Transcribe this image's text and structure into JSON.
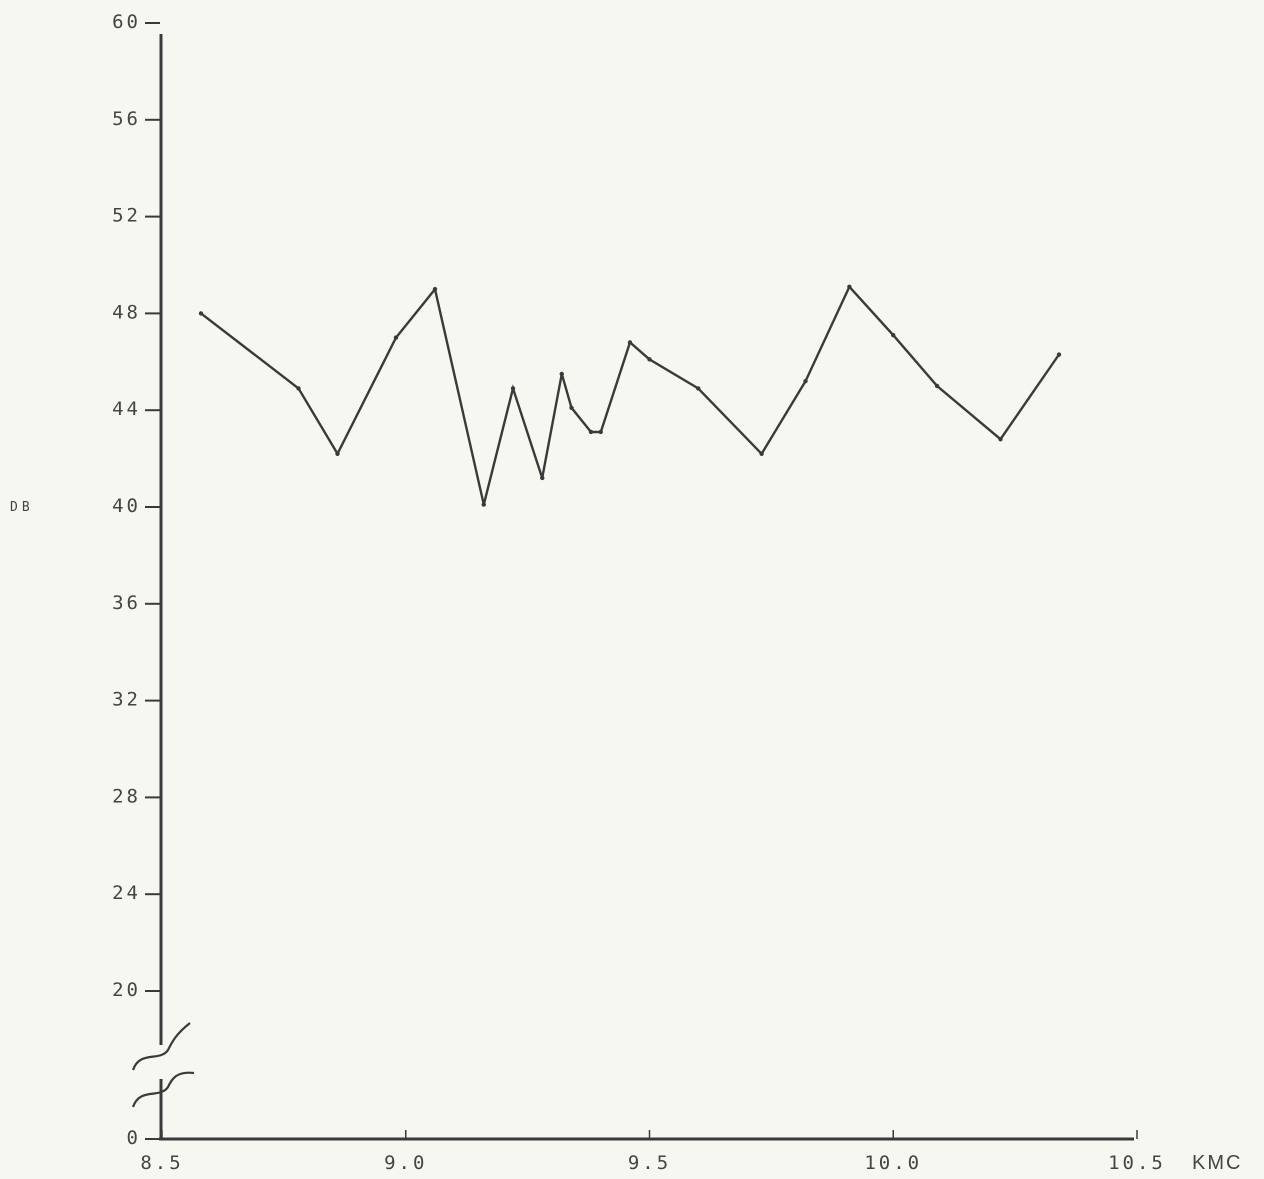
{
  "chart_data": {
    "type": "line",
    "ylabel": "DB",
    "xunit": "KMC",
    "xlim": [
      8.5,
      10.5
    ],
    "ylim": [
      0,
      60
    ],
    "y_axis_break": "between 0 and 20",
    "grid": false,
    "x_tick_values": [
      8.5,
      9.0,
      9.5,
      10.0,
      10.5
    ],
    "x_tick_labels": [
      "8.5",
      "9.0",
      "9.5",
      "10.0",
      "10.5"
    ],
    "y_tick_values": [
      0,
      20,
      24,
      28,
      32,
      36,
      40,
      44,
      48,
      52,
      56,
      60
    ],
    "y_tick_labels": [
      "0",
      "20",
      "24",
      "28",
      "32",
      "36",
      "40",
      "44",
      "48",
      "52",
      "56",
      "60"
    ],
    "series": [
      {
        "x": [
          8.58,
          8.78,
          8.86,
          8.98,
          9.06,
          9.16,
          9.22,
          9.28,
          9.32,
          9.34,
          9.38,
          9.4,
          9.46,
          9.5,
          9.6,
          9.73,
          9.82,
          9.91,
          10.0,
          10.09,
          10.22,
          10.34
        ],
        "y": [
          48,
          44.9,
          42.2,
          47,
          49,
          40.1,
          44.9,
          41.2,
          45.5,
          44.1,
          43.1,
          43.1,
          46.8,
          46.1,
          44.9,
          42.2,
          45.2,
          49.1,
          47.1,
          45,
          42.8,
          46.3
        ]
      }
    ]
  }
}
